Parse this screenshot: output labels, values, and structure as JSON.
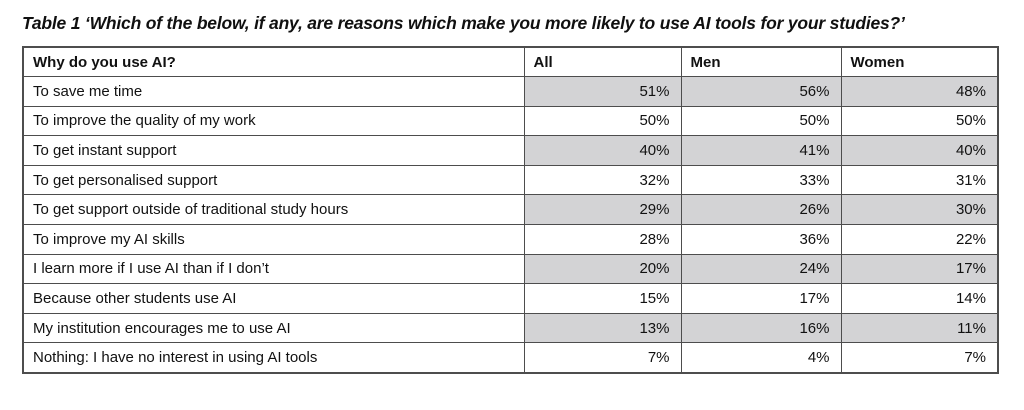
{
  "caption": "Table 1 ‘Which of the below, if any, are reasons which make you more likely to use AI tools for your studies?’",
  "colors": {
    "row_shade": "#d3d3d5",
    "border": "#4d4d4d",
    "text": "#111111",
    "background": "#ffffff"
  },
  "table": {
    "columns": [
      "Why do you use AI?",
      "All",
      "Men",
      "Women"
    ],
    "rows": [
      {
        "label": "To save me time",
        "all": "51%",
        "men": "56%",
        "women": "48%",
        "shaded": true
      },
      {
        "label": "To improve the quality of my work",
        "all": "50%",
        "men": "50%",
        "women": "50%",
        "shaded": false
      },
      {
        "label": "To get instant support",
        "all": "40%",
        "men": "41%",
        "women": "40%",
        "shaded": true
      },
      {
        "label": "To get personalised support",
        "all": "32%",
        "men": "33%",
        "women": "31%",
        "shaded": false
      },
      {
        "label": "To get support outside of traditional study hours",
        "all": "29%",
        "men": "26%",
        "women": "30%",
        "shaded": true
      },
      {
        "label": "To improve my AI skills",
        "all": "28%",
        "men": "36%",
        "women": "22%",
        "shaded": false
      },
      {
        "label": "I learn more if I use AI than if I don’t",
        "all": "20%",
        "men": "24%",
        "women": "17%",
        "shaded": true
      },
      {
        "label": "Because other students use AI",
        "all": "15%",
        "men": "17%",
        "women": "14%",
        "shaded": false
      },
      {
        "label": "My institution encourages me to use AI",
        "all": "13%",
        "men": "16%",
        "women": "11%",
        "shaded": true
      },
      {
        "label": "Nothing: I have no interest in using AI tools",
        "all": "7%",
        "men": "4%",
        "women": "7%",
        "shaded": false
      }
    ]
  }
}
